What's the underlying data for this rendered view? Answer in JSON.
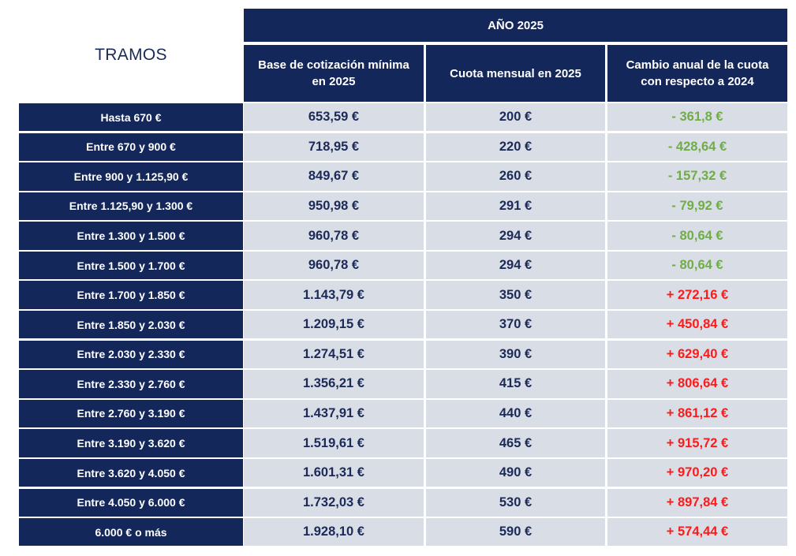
{
  "title": "TRAMOS",
  "year_header": "AÑO 2025",
  "columns": {
    "base": "Base de cotización mínima en 2025",
    "cuota": "Cuota mensual en 2025",
    "cambio": "Cambio anual de la cuota con respecto a 2024"
  },
  "colors": {
    "header_bg": "#14275a",
    "cell_bg": "#d9dde6",
    "positive_change": "#ff1a1a",
    "negative_change": "#70ad47",
    "text_dark": "#1b2a57"
  },
  "rows": [
    {
      "tramo": "Hasta 670 €",
      "base": "653,59 €",
      "cuota": "200 €",
      "cambio": "- 361,8 €",
      "sign": "neg"
    },
    {
      "tramo": "Entre 670 y 900 €",
      "base": "718,95 €",
      "cuota": "220 €",
      "cambio": "- 428,64 €",
      "sign": "neg"
    },
    {
      "tramo": "Entre 900 y 1.125,90 €",
      "base": "849,67 €",
      "cuota": "260 €",
      "cambio": "- 157,32 €",
      "sign": "neg"
    },
    {
      "tramo": "Entre 1.125,90 y 1.300 €",
      "base": "950,98 €",
      "cuota": "291 €",
      "cambio": "- 79,92 €",
      "sign": "neg"
    },
    {
      "tramo": "Entre 1.300 y 1.500 €",
      "base": "960,78 €",
      "cuota": "294 €",
      "cambio": "- 80,64 €",
      "sign": "neg"
    },
    {
      "tramo": "Entre 1.500 y 1.700 €",
      "base": "960,78 €",
      "cuota": "294 €",
      "cambio": "- 80,64 €",
      "sign": "neg"
    },
    {
      "tramo": "Entre 1.700 y 1.850 €",
      "base": "1.143,79 €",
      "cuota": "350 €",
      "cambio": "+ 272,16 €",
      "sign": "pos"
    },
    {
      "tramo": "Entre 1.850 y 2.030 €",
      "base": "1.209,15 €",
      "cuota": "370 €",
      "cambio": "+ 450,84 €",
      "sign": "pos"
    },
    {
      "tramo": "Entre 2.030 y 2.330 €",
      "base": "1.274,51 €",
      "cuota": "390 €",
      "cambio": "+ 629,40 €",
      "sign": "pos"
    },
    {
      "tramo": "Entre 2.330 y 2.760 €",
      "base": "1.356,21 €",
      "cuota": "415 €",
      "cambio": "+ 806,64 €",
      "sign": "pos"
    },
    {
      "tramo": "Entre 2.760 y 3.190 €",
      "base": "1.437,91 €",
      "cuota": "440 €",
      "cambio": "+ 861,12 €",
      "sign": "pos"
    },
    {
      "tramo": "Entre 3.190 y 3.620 €",
      "base": "1.519,61 €",
      "cuota": "465 €",
      "cambio": "+ 915,72 €",
      "sign": "pos"
    },
    {
      "tramo": "Entre 3.620 y 4.050 €",
      "base": "1.601,31 €",
      "cuota": "490 €",
      "cambio": "+ 970,20 €",
      "sign": "pos"
    },
    {
      "tramo": "Entre 4.050 y 6.000 €",
      "base": "1.732,03 €",
      "cuota": "530 €",
      "cambio": "+ 897,84 €",
      "sign": "pos"
    },
    {
      "tramo": "6.000 € o más",
      "base": "1.928,10 €",
      "cuota": "590 €",
      "cambio": "+ 574,44 €",
      "sign": "pos"
    }
  ]
}
